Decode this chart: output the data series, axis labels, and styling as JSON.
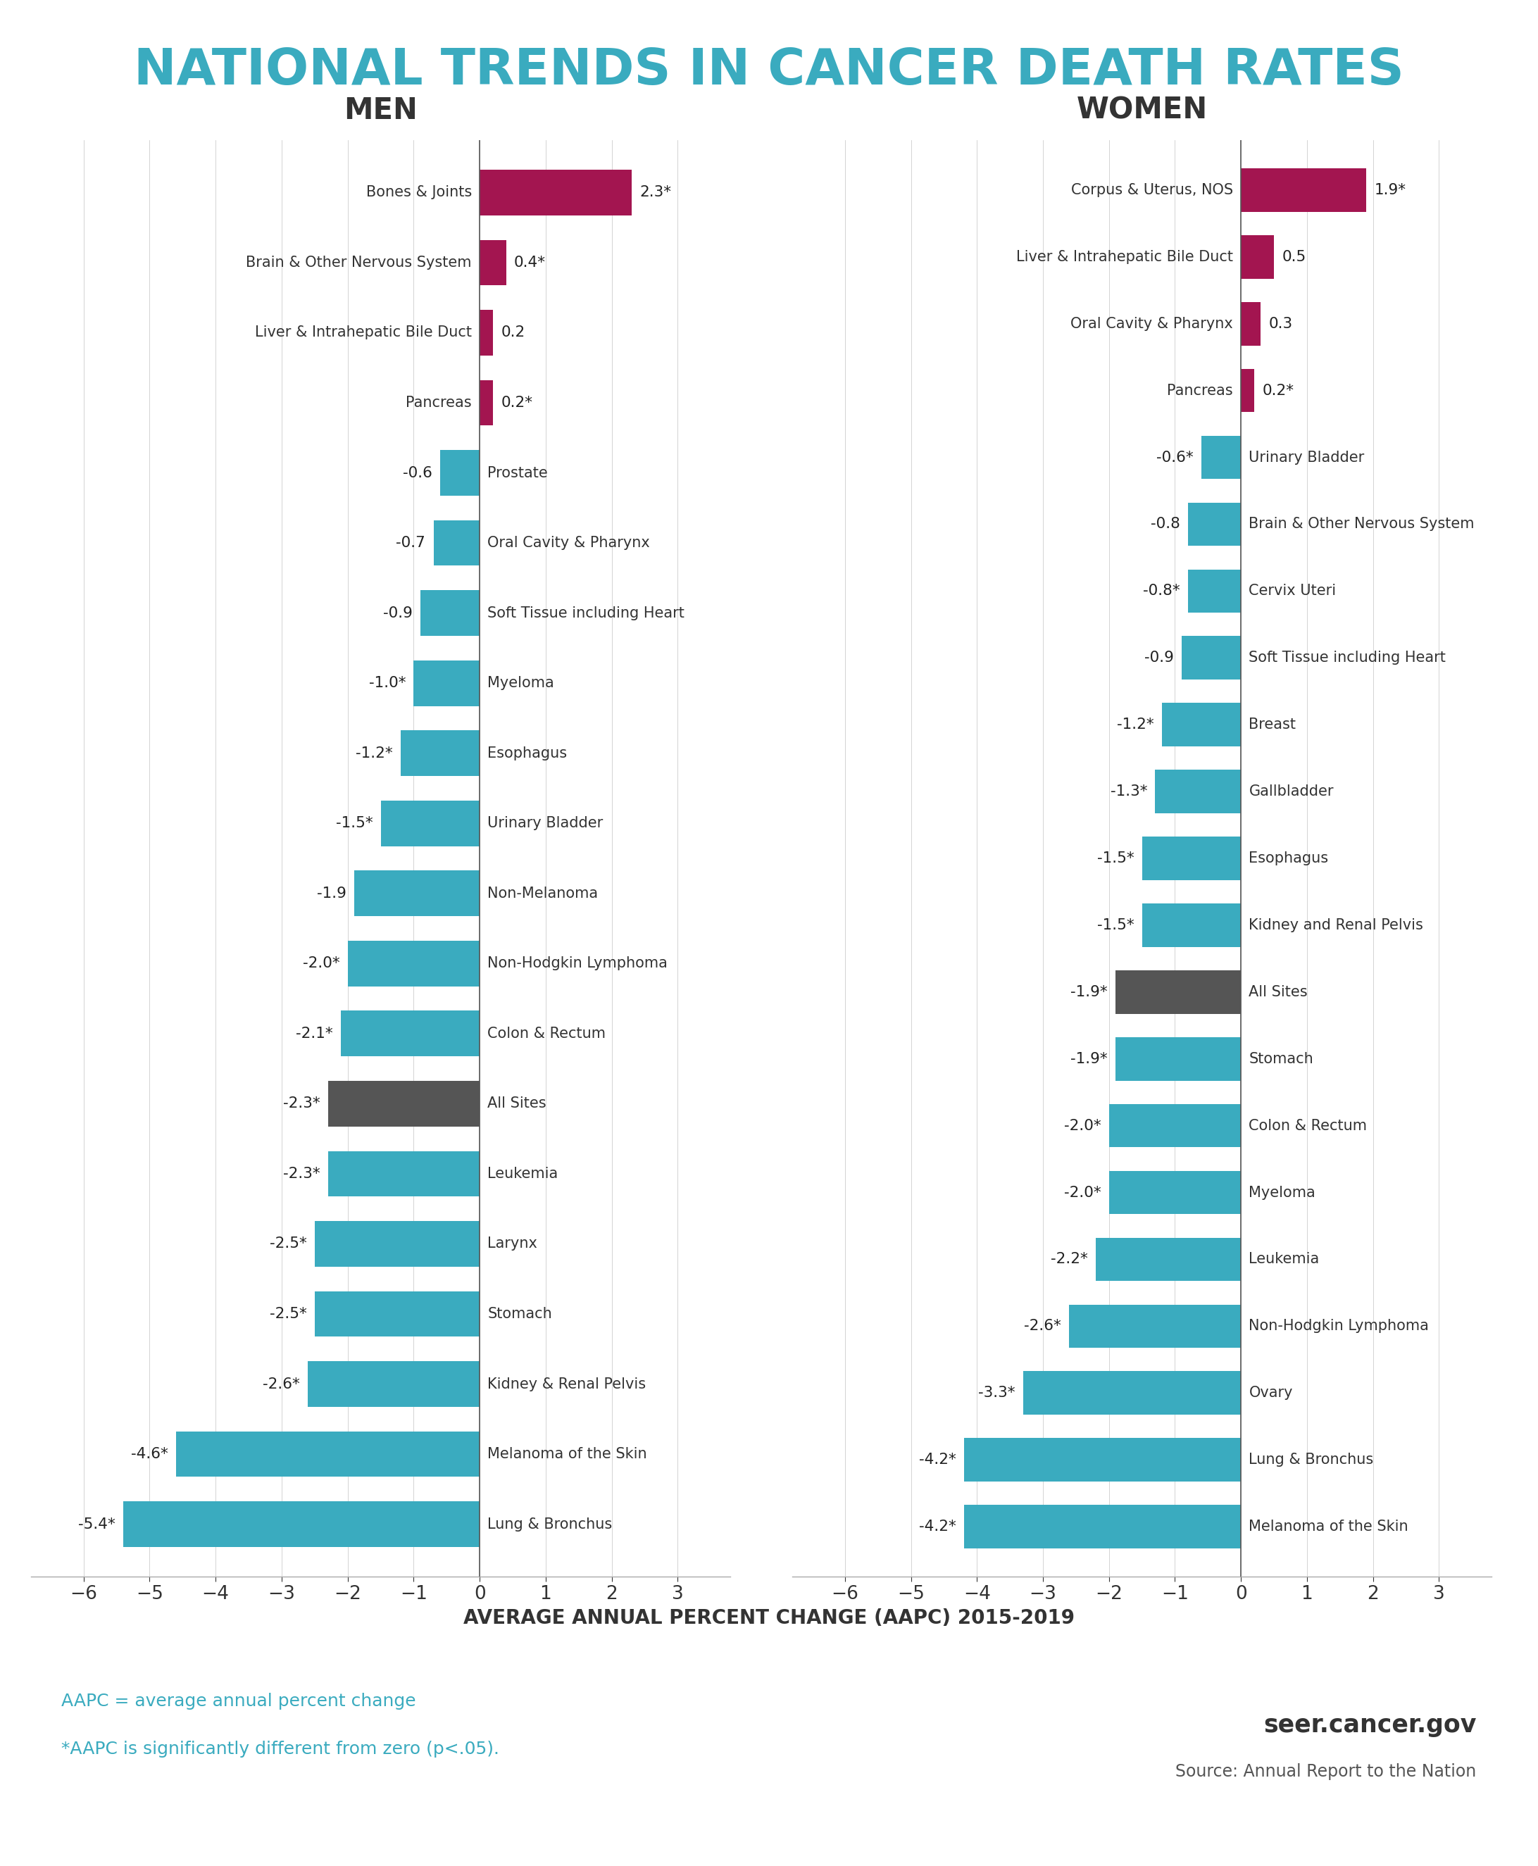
{
  "title": "NATIONAL TRENDS IN CANCER DEATH RATES",
  "title_color": "#3AABBF",
  "subtitle": "AVERAGE ANNUAL PERCENT CHANGE (AAPC) 2015-2019",
  "men_label": "MEN",
  "women_label": "WOMEN",
  "men_data": [
    {
      "label": "Bones & Joints",
      "value": 2.3,
      "sig": true,
      "color": "#A31550"
    },
    {
      "label": "Brain & Other Nervous System",
      "value": 0.4,
      "sig": true,
      "color": "#A31550"
    },
    {
      "label": "Liver & Intrahepatic Bile Duct",
      "value": 0.2,
      "sig": false,
      "color": "#A31550"
    },
    {
      "label": "Pancreas",
      "value": 0.2,
      "sig": true,
      "color": "#A31550"
    },
    {
      "label": "Prostate",
      "value": -0.6,
      "sig": false,
      "color": "#3AABBF"
    },
    {
      "label": "Oral Cavity & Pharynx",
      "value": -0.7,
      "sig": false,
      "color": "#3AABBF"
    },
    {
      "label": "Soft Tissue including Heart",
      "value": -0.9,
      "sig": false,
      "color": "#3AABBF"
    },
    {
      "label": "Myeloma",
      "value": -1.0,
      "sig": true,
      "color": "#3AABBF"
    },
    {
      "label": "Esophagus",
      "value": -1.2,
      "sig": true,
      "color": "#3AABBF"
    },
    {
      "label": "Urinary Bladder",
      "value": -1.5,
      "sig": true,
      "color": "#3AABBF"
    },
    {
      "label": "Non-Melanoma",
      "value": -1.9,
      "sig": false,
      "color": "#3AABBF"
    },
    {
      "label": "Non-Hodgkin Lymphoma",
      "value": -2.0,
      "sig": true,
      "color": "#3AABBF"
    },
    {
      "label": "Colon & Rectum",
      "value": -2.1,
      "sig": true,
      "color": "#3AABBF"
    },
    {
      "label": "All Sites",
      "value": -2.3,
      "sig": true,
      "color": "#555555"
    },
    {
      "label": "Leukemia",
      "value": -2.3,
      "sig": true,
      "color": "#3AABBF"
    },
    {
      "label": "Larynx",
      "value": -2.5,
      "sig": true,
      "color": "#3AABBF"
    },
    {
      "label": "Stomach",
      "value": -2.5,
      "sig": true,
      "color": "#3AABBF"
    },
    {
      "label": "Kidney & Renal Pelvis",
      "value": -2.6,
      "sig": true,
      "color": "#3AABBF"
    },
    {
      "label": "Melanoma of the Skin",
      "value": -4.6,
      "sig": true,
      "color": "#3AABBF"
    },
    {
      "label": "Lung & Bronchus",
      "value": -5.4,
      "sig": true,
      "color": "#3AABBF"
    }
  ],
  "women_data": [
    {
      "label": "Corpus & Uterus, NOS",
      "value": 1.9,
      "sig": true,
      "color": "#A31550"
    },
    {
      "label": "Liver & Intrahepatic Bile Duct",
      "value": 0.5,
      "sig": false,
      "color": "#A31550"
    },
    {
      "label": "Oral Cavity & Pharynx",
      "value": 0.3,
      "sig": false,
      "color": "#A31550"
    },
    {
      "label": "Pancreas",
      "value": 0.2,
      "sig": true,
      "color": "#A31550"
    },
    {
      "label": "Urinary Bladder",
      "value": -0.6,
      "sig": true,
      "color": "#3AABBF"
    },
    {
      "label": "Brain & Other Nervous System",
      "value": -0.8,
      "sig": false,
      "color": "#3AABBF"
    },
    {
      "label": "Cervix Uteri",
      "value": -0.8,
      "sig": true,
      "color": "#3AABBF"
    },
    {
      "label": "Soft Tissue including Heart",
      "value": -0.9,
      "sig": false,
      "color": "#3AABBF"
    },
    {
      "label": "Breast",
      "value": -1.2,
      "sig": true,
      "color": "#3AABBF"
    },
    {
      "label": "Gallbladder",
      "value": -1.3,
      "sig": true,
      "color": "#3AABBF"
    },
    {
      "label": "Esophagus",
      "value": -1.5,
      "sig": true,
      "color": "#3AABBF"
    },
    {
      "label": "Kidney and Renal Pelvis",
      "value": -1.5,
      "sig": true,
      "color": "#3AABBF"
    },
    {
      "label": "All Sites",
      "value": -1.9,
      "sig": true,
      "color": "#555555"
    },
    {
      "label": "Stomach",
      "value": -1.9,
      "sig": true,
      "color": "#3AABBF"
    },
    {
      "label": "Colon & Rectum",
      "value": -2.0,
      "sig": true,
      "color": "#3AABBF"
    },
    {
      "label": "Myeloma",
      "value": -2.0,
      "sig": true,
      "color": "#3AABBF"
    },
    {
      "label": "Leukemia",
      "value": -2.2,
      "sig": true,
      "color": "#3AABBF"
    },
    {
      "label": "Non-Hodgkin Lymphoma",
      "value": -2.6,
      "sig": true,
      "color": "#3AABBF"
    },
    {
      "label": "Ovary",
      "value": -3.3,
      "sig": true,
      "color": "#3AABBF"
    },
    {
      "label": "Lung & Bronchus",
      "value": -4.2,
      "sig": true,
      "color": "#3AABBF"
    },
    {
      "label": "Melanoma of the Skin",
      "value": -4.2,
      "sig": true,
      "color": "#3AABBF"
    }
  ],
  "xlim": [
    -6.8,
    3.8
  ],
  "xticks": [
    -6,
    -5,
    -4,
    -3,
    -2,
    -1,
    0,
    1,
    2,
    3
  ],
  "background_color": "#FFFFFF",
  "bar_height": 0.65,
  "footnote1": "AAPC = average annual percent change",
  "footnote2": "*AAPC is significantly different from zero (p<.05).",
  "footnote_color": "#3AABBF",
  "source_text1": "seer.cancer.gov",
  "source_text2": "Source: Annual Report to the Nation"
}
